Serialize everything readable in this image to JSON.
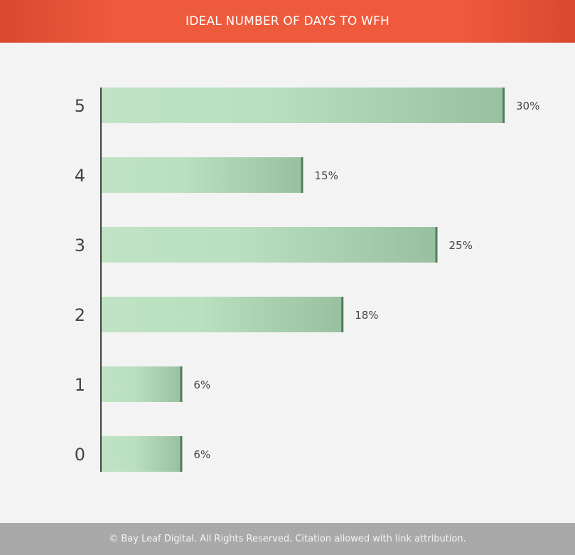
{
  "header": {
    "title": "IDEAL NUMBER OF DAYS TO WFH"
  },
  "footer": {
    "text": "© Bay Leaf Digital. All Rights Reserved. Citation allowed with link attribution."
  },
  "colors": {
    "header": "#ee5a3c",
    "bar_light": "#bfe3c4",
    "bar_dark": "#9bc3a2",
    "bar_edge": "#4f7f5c",
    "footer": "#a9a9a9"
  },
  "chart_data": {
    "type": "bar",
    "orientation": "horizontal",
    "title": "IDEAL NUMBER OF DAYS TO WFH",
    "categories": [
      "5",
      "4",
      "3",
      "2",
      "1",
      "0"
    ],
    "values": [
      30,
      15,
      25,
      18,
      6,
      6
    ],
    "labels": [
      "30%",
      "15%",
      "25%",
      "18%",
      "6%",
      "6%"
    ],
    "xlabel": "",
    "ylabel": "",
    "xlim": [
      0,
      30
    ],
    "grid": false,
    "unit": "%"
  }
}
